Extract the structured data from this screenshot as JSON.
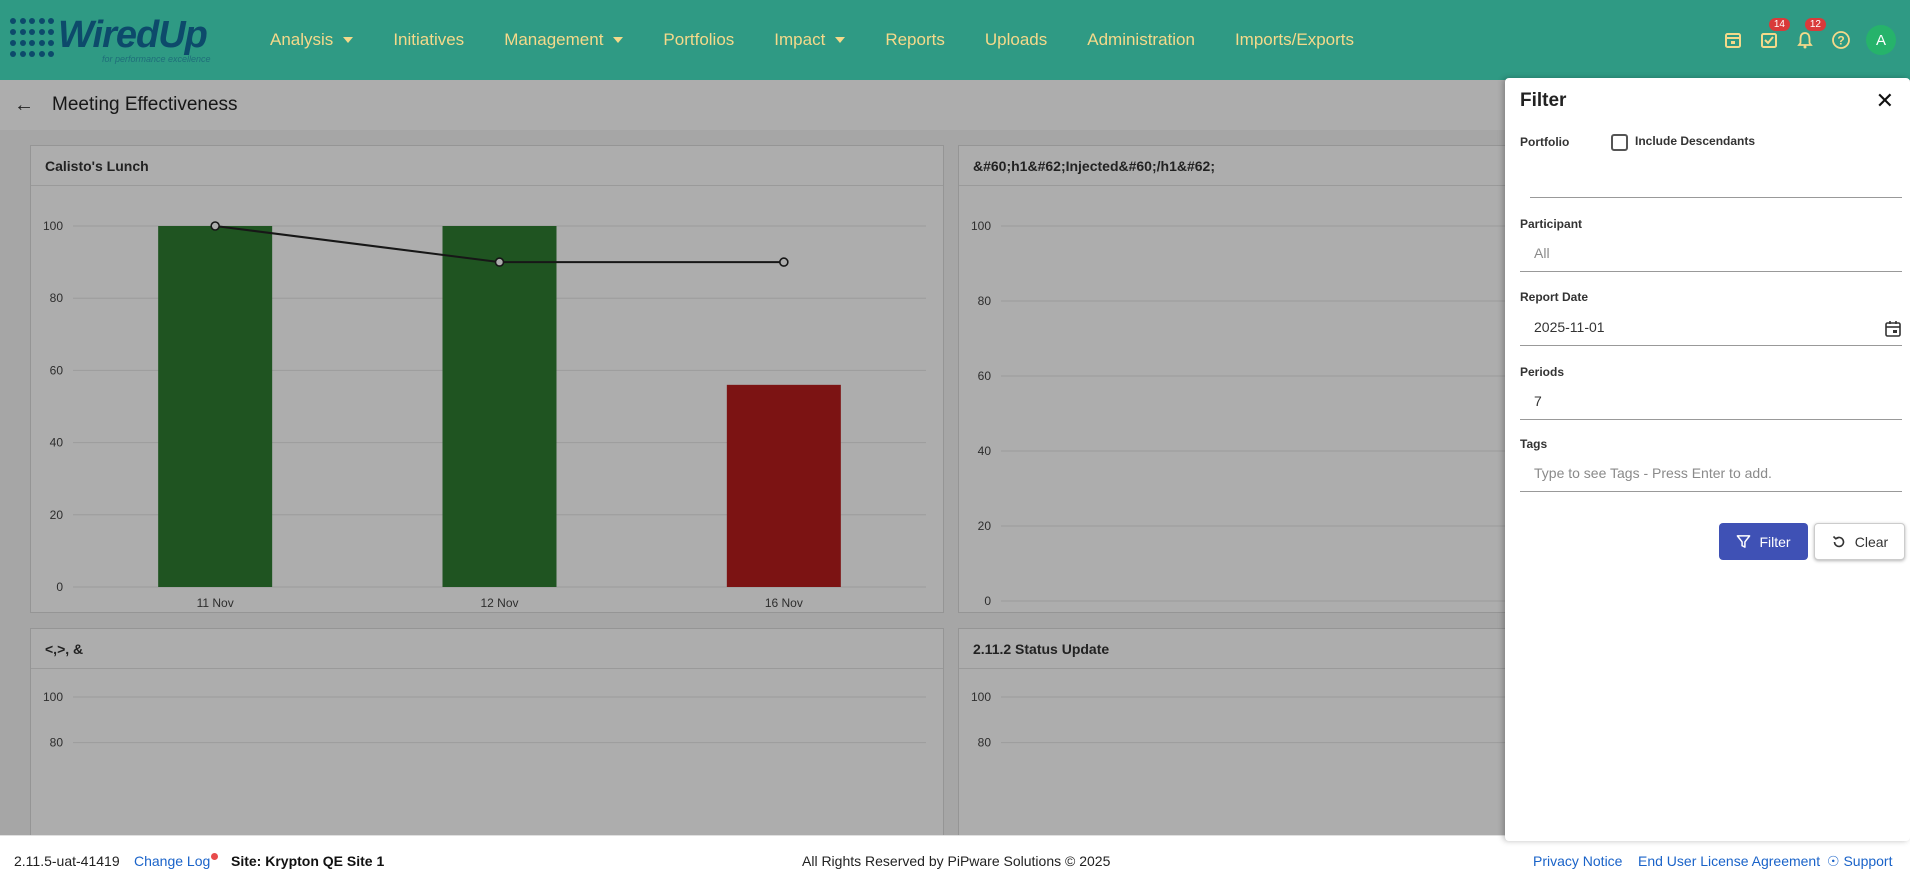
{
  "brand": {
    "name": "WiredUp",
    "tagline": "for performance excellence"
  },
  "nav": {
    "items": [
      {
        "label": "Analysis",
        "dropdown": true
      },
      {
        "label": "Initiatives",
        "dropdown": false
      },
      {
        "label": "Management",
        "dropdown": true
      },
      {
        "label": "Portfolios",
        "dropdown": false
      },
      {
        "label": "Impact",
        "dropdown": true
      },
      {
        "label": "Reports",
        "dropdown": false
      },
      {
        "label": "Uploads",
        "dropdown": false
      },
      {
        "label": "Administration",
        "dropdown": false
      },
      {
        "label": "Imports/Exports",
        "dropdown": false
      }
    ]
  },
  "header_icons": {
    "tasks_badge": "14",
    "notifications_badge": "12",
    "avatar_initial": "A"
  },
  "page": {
    "title": "Meeting Effectiveness"
  },
  "colors": {
    "header": "#2f9a84",
    "nav_text": "#f5d98a",
    "bar_good": "#2e7d32",
    "bar_bad": "#b71c1c",
    "primary_button": "#3f51b5"
  },
  "chart_data": [
    {
      "type": "bar",
      "title": "Calisto's Lunch",
      "categories": [
        "11 Nov",
        "12 Nov",
        "16 Nov"
      ],
      "series": [
        {
          "type": "bar",
          "values": [
            100,
            100,
            56
          ]
        },
        {
          "type": "line",
          "values": [
            100,
            90,
            90
          ]
        }
      ],
      "bar_colors": [
        "#2e7d32",
        "#2e7d32",
        "#b71c1c"
      ],
      "ylim": [
        0,
        100
      ],
      "yticks": [
        0,
        20,
        40,
        60,
        80,
        100
      ],
      "grid": true
    },
    {
      "type": "bar",
      "title": "&#60;h1&#62;Injected&#60;/h1&#62;",
      "categories": [],
      "ylim": [
        0,
        100
      ],
      "yticks": [
        0,
        20,
        40,
        60,
        80,
        100
      ],
      "grid": true
    },
    {
      "type": "bar",
      "title": "<,>, &",
      "categories": [],
      "ylim": [
        0,
        100
      ],
      "yticks": [
        80,
        100
      ],
      "grid": true
    },
    {
      "type": "bar",
      "title": "2.11.2 Status Update",
      "categories": [],
      "ylim": [
        0,
        100
      ],
      "yticks": [
        80,
        100
      ],
      "grid": true
    }
  ],
  "filter": {
    "title": "Filter",
    "portfolio_label": "Portfolio",
    "include_descendants_label": "Include Descendants",
    "include_descendants_checked": false,
    "portfolio_value": "",
    "participant_label": "Participant",
    "participant_placeholder": "All",
    "report_date_label": "Report Date",
    "report_date_value": "2025-11-01",
    "periods_label": "Periods",
    "periods_value": "7",
    "tags_label": "Tags",
    "tags_placeholder": "Type to see Tags - Press Enter to add.",
    "filter_button": "Filter",
    "clear_button": "Clear"
  },
  "footer": {
    "version": "2.11.5-uat-41419",
    "change_log": "Change Log",
    "site": "Site: Krypton QE Site 1",
    "rights": "All Rights Reserved by PiPware Solutions © 2025",
    "privacy": "Privacy Notice",
    "eula": "End User License Agreement",
    "support": "Support"
  }
}
